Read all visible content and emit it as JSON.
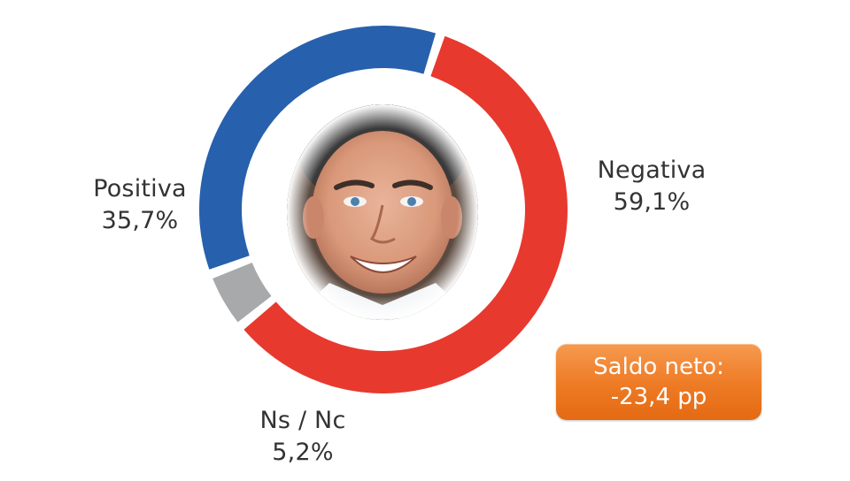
{
  "chart_data": {
    "type": "pie",
    "categories": [
      "Negativa",
      "Ns / Nc",
      "Positiva"
    ],
    "values": [
      59.1,
      5.2,
      35.7
    ],
    "value_labels": [
      "59,1%",
      "5,2%",
      "35,7%"
    ],
    "colors": [
      "#e8392f",
      "#a7a9ab",
      "#2760ad"
    ],
    "donut": true,
    "center_image": "portrait-photo"
  },
  "labels": {
    "positiva": {
      "name": "Positiva",
      "value": "35,7%"
    },
    "negativa": {
      "name": "Negativa",
      "value": "59,1%"
    },
    "nsnc": {
      "name": "Ns / Nc",
      "value": "5,2%"
    }
  },
  "net_badge": {
    "line1": "Saldo neto:",
    "line2": "-23,4 pp",
    "color": "#ee7a24"
  }
}
